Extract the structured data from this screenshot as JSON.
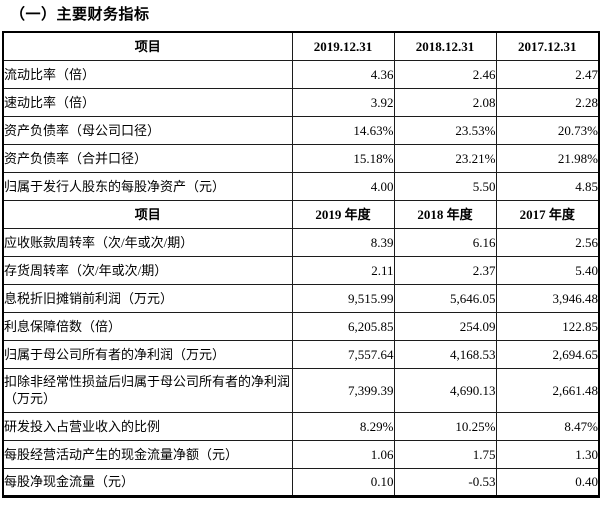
{
  "page": {
    "title": "（一）主要财务指标"
  },
  "colors": {
    "highlight_box": "#ee1111",
    "table_border": "#1c1c1c",
    "text": "#000000",
    "background": "#ffffff"
  },
  "table": {
    "sections": [
      {
        "header": {
          "item": "项目",
          "cols": [
            "2019.12.31",
            "2018.12.31",
            "2017.12.31"
          ]
        },
        "rows": [
          {
            "label": "流动比率（倍）",
            "values": [
              "4.36",
              "2.46",
              "2.47"
            ],
            "hl": true
          },
          {
            "label": "速动比率（倍）",
            "values": [
              "3.92",
              "2.08",
              "2.28"
            ],
            "hl": true
          },
          {
            "label": "资产负债率（母公司口径）",
            "values": [
              "14.63%",
              "23.53%",
              "20.73%"
            ],
            "hl": true
          },
          {
            "label": "资产负债率（合并口径）",
            "values": [
              "15.18%",
              "23.21%",
              "21.98%"
            ],
            "hl": true
          },
          {
            "label": "归属于发行人股东的每股净资产（元）",
            "values": [
              "4.00",
              "5.50",
              "4.85"
            ],
            "hl": true
          }
        ]
      },
      {
        "header": {
          "item": "项目",
          "cols": [
            "2019 年度",
            "2018 年度",
            "2017 年度"
          ]
        },
        "rows": [
          {
            "label": "应收账款周转率（次/年或次/期）",
            "values": [
              "8.39",
              "6.16",
              "2.56"
            ],
            "hl": true
          },
          {
            "label": "存货周转率（次/年或次/期）",
            "values": [
              "2.11",
              "2.37",
              "5.40"
            ],
            "hl": true
          },
          {
            "label": "息税折旧摊销前利润（万元）",
            "values": [
              "9,515.99",
              "5,646.05",
              "3,946.48"
            ],
            "hl": true
          },
          {
            "label": "利息保障倍数（倍）",
            "values": [
              "6,205.85",
              "254.09",
              "122.85"
            ],
            "hl": true
          },
          {
            "label": "归属于母公司所有者的净利润（万元）",
            "values": [
              "7,557.64",
              "4,168.53",
              "2,694.65"
            ],
            "hl": true
          },
          {
            "label": "扣除非经常性损益后归属于母公司所有者的净利润（万元）",
            "values": [
              "7,399.39",
              "4,690.13",
              "2,661.48"
            ],
            "hl": true,
            "tall": true
          },
          {
            "label": "研发投入占营业收入的比例",
            "values": [
              "8.29%",
              "10.25%",
              "8.47%"
            ],
            "hl": false
          },
          {
            "label": "每股经营活动产生的现金流量净额（元）",
            "values": [
              "1.06",
              "1.75",
              "1.30"
            ],
            "hl": false
          },
          {
            "label": "每股净现金流量（元）",
            "values": [
              "0.10",
              "-0.53",
              "0.40"
            ],
            "hl": false
          }
        ]
      }
    ]
  }
}
